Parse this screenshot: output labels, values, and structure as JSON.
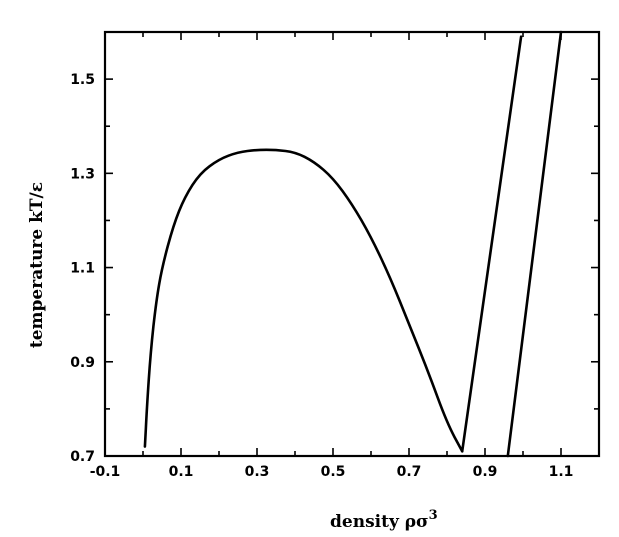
{
  "chart_data": {
    "type": "line",
    "xlabel": "density  ρσ",
    "xlabel_sup": "3",
    "ylabel": "temperature  kT/ε",
    "xlim": [
      -0.1,
      1.2
    ],
    "ylim": [
      0.7,
      1.6
    ],
    "x_ticks": [
      -0.1,
      0.1,
      0.3,
      0.5,
      0.7,
      0.9,
      1.1
    ],
    "x_tick_labels": [
      "-0.1",
      "0.1",
      "0.3",
      "0.5",
      "0.7",
      "0.9",
      "1.1"
    ],
    "y_ticks": [
      0.7,
      0.9,
      1.1,
      1.3,
      1.5
    ],
    "y_tick_labels": [
      "0.7",
      "0.9",
      "1.1",
      "1.3",
      "1.5"
    ],
    "grid": false,
    "series": [
      {
        "x": [
          0.005,
          0.01,
          0.02,
          0.035,
          0.05,
          0.08,
          0.11,
          0.15,
          0.2,
          0.25,
          0.3,
          0.35,
          0.4,
          0.45,
          0.5,
          0.55,
          0.6,
          0.65,
          0.7,
          0.75,
          0.8,
          0.84
        ],
        "y": [
          0.72,
          0.8,
          0.92,
          1.03,
          1.1,
          1.19,
          1.25,
          1.3,
          1.33,
          1.345,
          1.35,
          1.35,
          1.345,
          1.325,
          1.29,
          1.235,
          1.165,
          1.08,
          0.98,
          0.88,
          0.77,
          0.71
        ]
      },
      {
        "x": [
          0.84,
          0.995
        ],
        "y": [
          0.71,
          1.59
        ]
      },
      {
        "x": [
          0.96,
          1.1
        ],
        "y": [
          0.7,
          1.6
        ]
      }
    ]
  }
}
